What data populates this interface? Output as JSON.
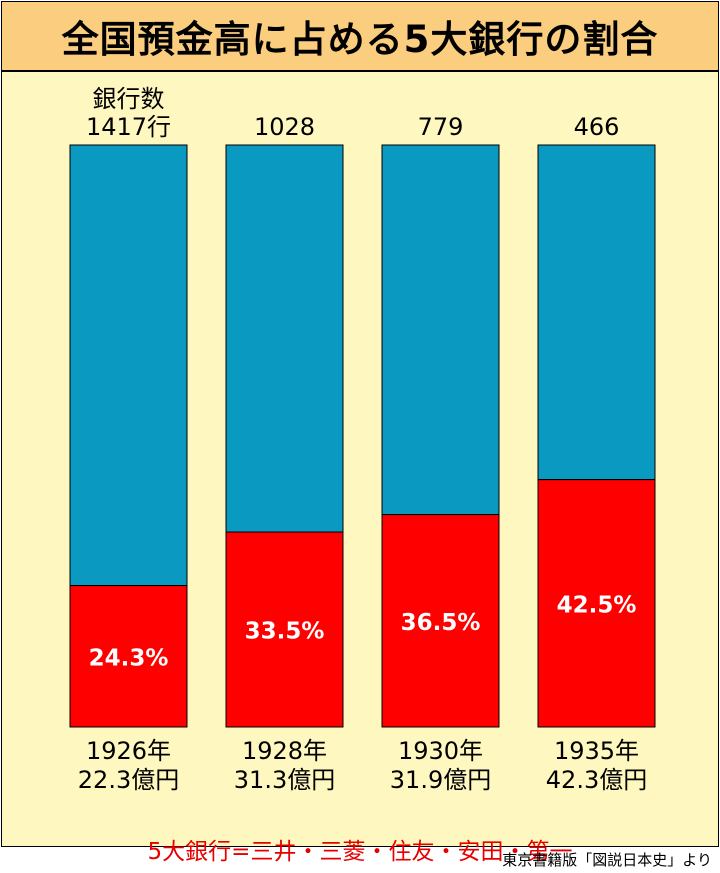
{
  "title": "全国預金高に占める5大銀行の割合",
  "bank_count_header": "銀行数",
  "footnote": "5大銀行=三井・三菱・住友・安田・第一",
  "source": "東京書籍版「図説日本史」より",
  "colors": {
    "background": "#fff7c0",
    "title_bar": "#fbcd7e",
    "rest": "#0a99c0",
    "big5": "#fe0000"
  },
  "chart_data": {
    "type": "bar",
    "stacked": true,
    "ylim": [
      0,
      100
    ],
    "categories": [
      "1926年",
      "1928年",
      "1930年",
      "1935年"
    ],
    "deposit_totals": [
      "22.3億円",
      "31.3億円",
      "31.9億円",
      "42.3億円"
    ],
    "bank_counts": [
      "1417行",
      "1028",
      "779",
      "466"
    ],
    "series": [
      {
        "name": "5大銀行",
        "values": [
          24.3,
          33.5,
          36.5,
          42.5
        ],
        "labels": [
          "24.3%",
          "33.5%",
          "36.5%",
          "42.5%"
        ]
      },
      {
        "values": [
          75.7,
          66.5,
          63.5,
          57.5
        ]
      }
    ]
  }
}
